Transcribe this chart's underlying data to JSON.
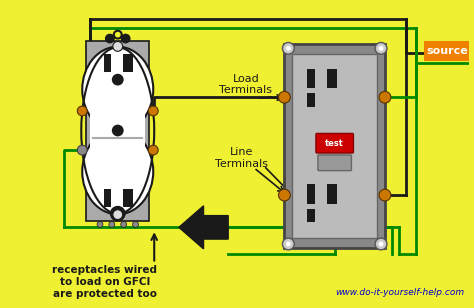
{
  "bg_color": "#f0f032",
  "website": "www.do-it-yourself-help.com",
  "source_label": "source",
  "source_bg": "#f08000",
  "label_load": "Load\nTerminals",
  "label_line": "Line\nTerminals",
  "label_bottom": "receptacles wired\nto load on GFCI\nare protected too",
  "wire_black": "#1a1a1a",
  "wire_green": "#008800",
  "wire_yellow_green": "#88bb00",
  "outlet_fill": "#ffffff",
  "gfci_gray": "#aaaaaa",
  "gfci_face": "#bbbbbb",
  "orange_screw": "#cc7700",
  "test_btn": "#cc0000",
  "reset_btn": "#999999",
  "mount_gray": "#999999"
}
